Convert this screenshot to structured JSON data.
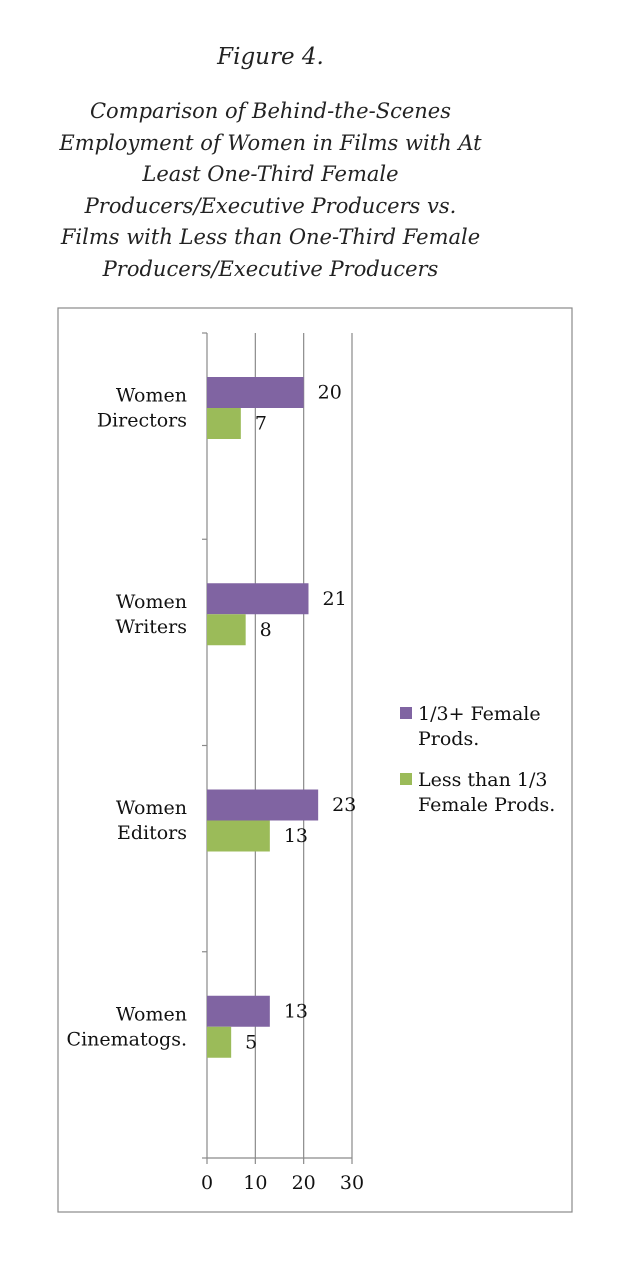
{
  "figure_label": "Figure 4.",
  "title_lines": [
    "Comparison of Behind-the-Scenes",
    "Employment of Women in Films with At",
    "Least One-Third Female",
    "Producers/Executive Producers vs.",
    "Films with Less than One-Third Female",
    "Producers/Executive Producers"
  ],
  "chart_data": {
    "type": "bar",
    "orientation": "horizontal",
    "categories": [
      [
        "Women",
        "Directors"
      ],
      [
        "Women",
        "Writers"
      ],
      [
        "Women",
        "Editors"
      ],
      [
        "Women",
        "Cinematogs."
      ]
    ],
    "series": [
      {
        "name": [
          "1/3+ Female",
          "Prods."
        ],
        "values": [
          20,
          21,
          23,
          13
        ],
        "color": "#8064a2"
      },
      {
        "name": [
          "Less than 1/3",
          "Female Prods."
        ],
        "values": [
          7,
          8,
          13,
          5
        ],
        "color": "#9bbb59"
      }
    ],
    "xlim": [
      0,
      30
    ],
    "xticks": [
      0,
      10,
      20,
      30
    ],
    "grid": true,
    "data_labels": true,
    "legend_position": "right"
  }
}
